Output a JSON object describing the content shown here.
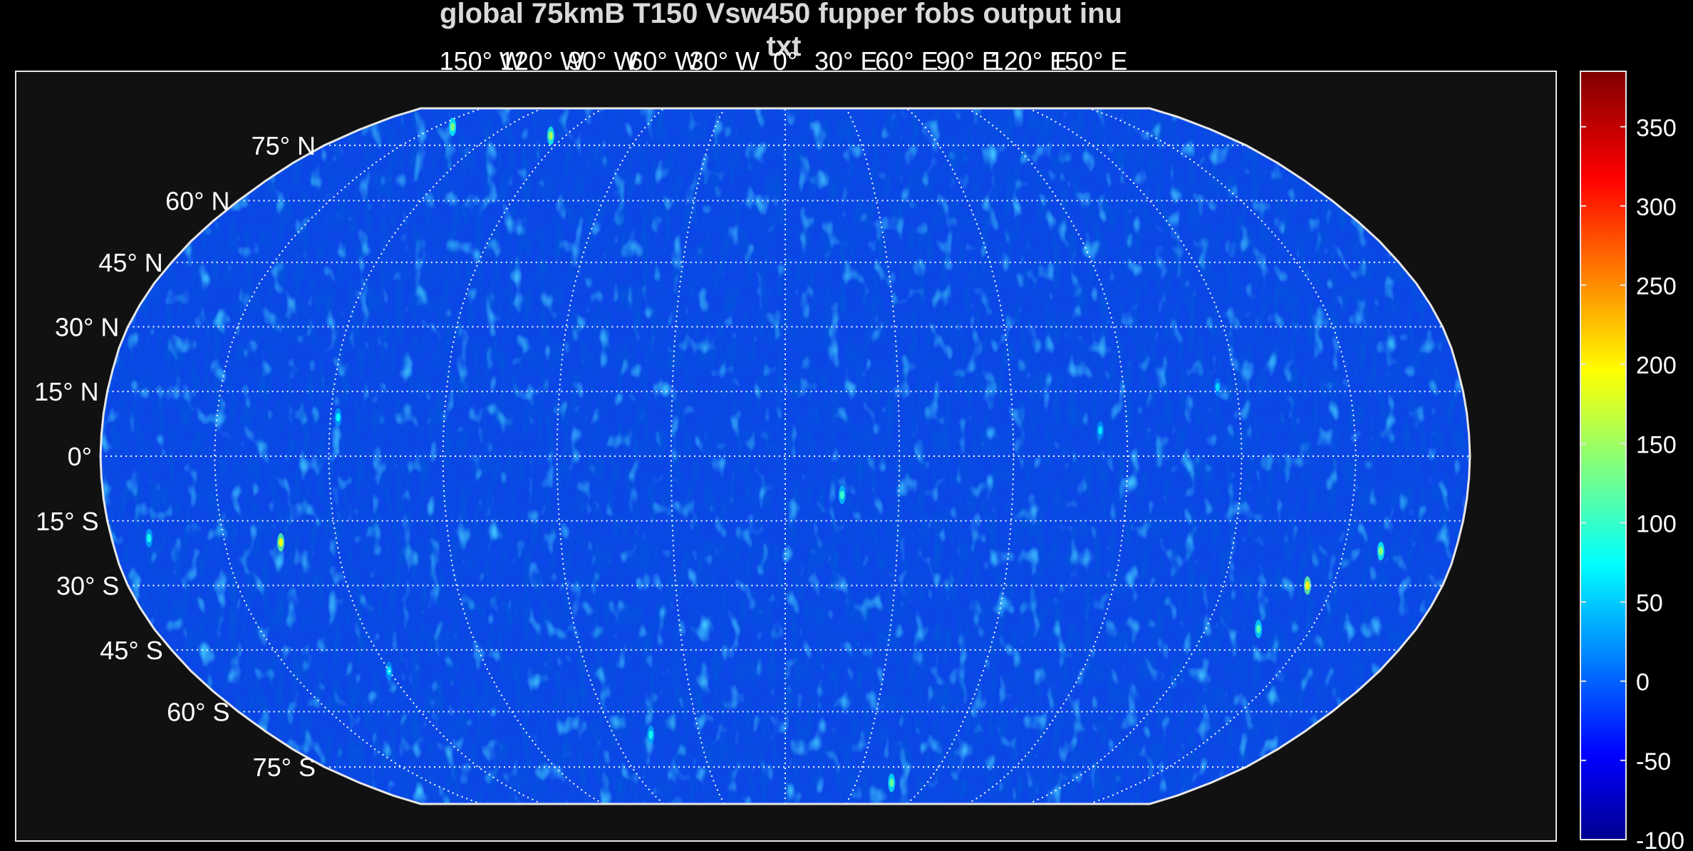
{
  "chart_data": {
    "type": "heatmap",
    "title_line1": "global 75kmB T150 Vsw450 fupper fobs output inu",
    "title_line2": "txt",
    "projection": "robinson",
    "grid": true,
    "colormap": "jet",
    "background_color": "#111111",
    "map_fill_color": "#0b46e6",
    "colorbar": {
      "min": -100,
      "max": 385,
      "ticks": [
        -100,
        -50,
        0,
        50,
        100,
        150,
        200,
        250,
        300,
        350
      ],
      "tick_labels": [
        "-100",
        "-50",
        "0",
        "50",
        "100",
        "150",
        "200",
        "250",
        "300",
        "350"
      ],
      "placement": "right"
    },
    "lat_labels": [
      {
        "lat": 75,
        "text": "75° N"
      },
      {
        "lat": 60,
        "text": "60° N"
      },
      {
        "lat": 45,
        "text": "45° N"
      },
      {
        "lat": 30,
        "text": "30° N"
      },
      {
        "lat": 15,
        "text": "15° N"
      },
      {
        "lat": 0,
        "text": "0°"
      },
      {
        "lat": -15,
        "text": "15° S"
      },
      {
        "lat": -30,
        "text": "30° S"
      },
      {
        "lat": -45,
        "text": "45° S"
      },
      {
        "lat": -60,
        "text": "60° S"
      },
      {
        "lat": -75,
        "text": "75° S"
      }
    ],
    "lon_labels": [
      {
        "lon": -150,
        "text": "150° W"
      },
      {
        "lon": -120,
        "text": "120° W"
      },
      {
        "lon": -90,
        "text": "90° W"
      },
      {
        "lon": -60,
        "text": "60° W"
      },
      {
        "lon": -30,
        "text": "30° W"
      },
      {
        "lon": 0,
        "text": "0°"
      },
      {
        "lon": 30,
        "text": "30° E"
      },
      {
        "lon": 60,
        "text": "60° E"
      },
      {
        "lon": 90,
        "text": "90° E"
      },
      {
        "lon": 120,
        "text": "120° E"
      },
      {
        "lon": 150,
        "text": "150° E"
      }
    ],
    "hotspots": [
      {
        "lon": -135,
        "lat": -20,
        "value": 200
      },
      {
        "lon": -118,
        "lat": 9,
        "value": 80
      },
      {
        "lon": -47,
        "lat": -66,
        "value": 90
      },
      {
        "lon": -96,
        "lat": 78,
        "value": 160
      },
      {
        "lon": -143,
        "lat": 81,
        "value": 140
      },
      {
        "lon": 15,
        "lat": -9,
        "value": 110
      },
      {
        "lon": 83,
        "lat": 6,
        "value": 70
      },
      {
        "lon": 143,
        "lat": -30,
        "value": 210
      },
      {
        "lon": 160,
        "lat": -22,
        "value": 150
      },
      {
        "lon": 135,
        "lat": -40,
        "value": 120
      },
      {
        "lon": 45,
        "lat": -80,
        "value": 130
      },
      {
        "lon": -170,
        "lat": -19,
        "value": 90
      },
      {
        "lon": 115,
        "lat": 16,
        "value": 60
      },
      {
        "lon": -120,
        "lat": -50,
        "value": 70
      }
    ]
  }
}
